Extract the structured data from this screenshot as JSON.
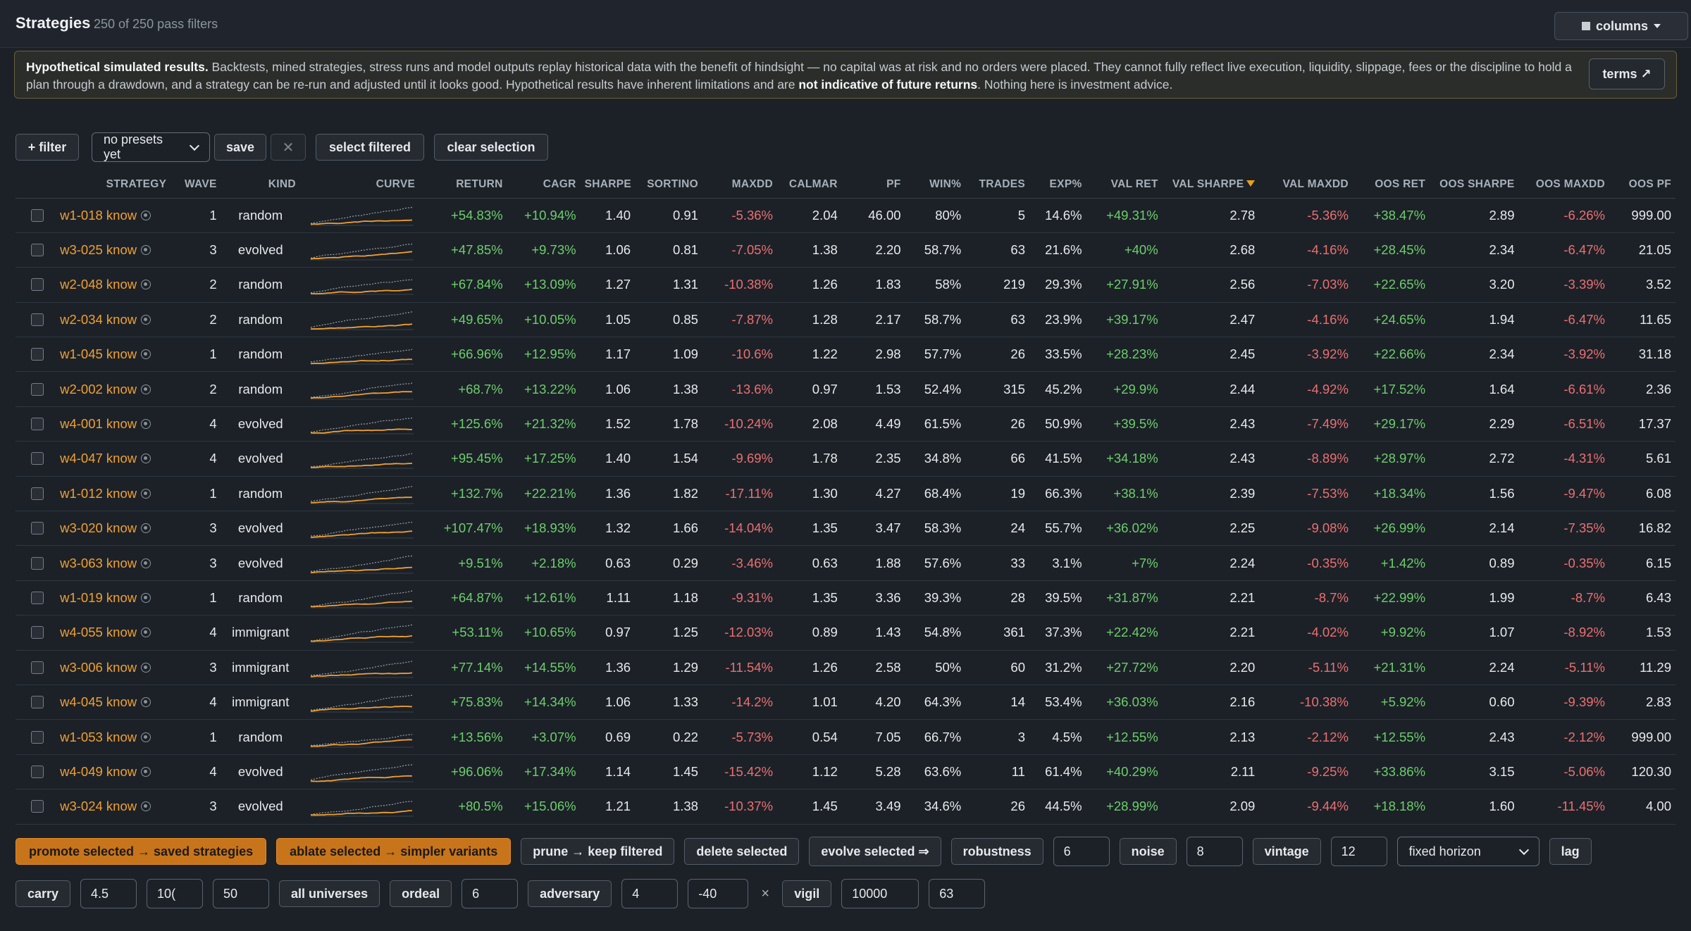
{
  "header": {
    "title": "Strategies",
    "subtitle": "250 of 250 pass filters",
    "columns_label": "columns"
  },
  "disclaimer": {
    "bold1": "Hypothetical simulated results.",
    "text1": " Backtests, mined strategies, stress runs and model outputs replay historical data with the benefit of hindsight — no capital was at risk and no orders were placed. They cannot fully reflect live execution, liquidity, slippage, fees or the discipline to hold a plan through a drawdown, and a strategy can be re-run and adjusted until it looks good. Hypothetical results have inherent limitations and are ",
    "bold2": "not indicative of future returns",
    "text2": ". Nothing here is investment advice.",
    "terms_label": "terms ↗"
  },
  "toolbar": {
    "filter_label": "+ filter",
    "preset_value": "no presets yet",
    "save_label": "save",
    "clear_x": "✕",
    "select_filtered_label": "select filtered",
    "clear_selection_label": "clear selection"
  },
  "table": {
    "headers": [
      "STRATEGY",
      "WAVE",
      "KIND",
      "CURVE",
      "RETURN",
      "CAGR",
      "SHARPE",
      "SORTINO",
      "MAXDD",
      "CALMAR",
      "PF",
      "WIN%",
      "TRADES",
      "EXP%",
      "VAL RET",
      "VAL SHARPE",
      "VAL MAXDD",
      "OOS RET",
      "OOS SHARPE",
      "OOS MAXDD",
      "OOS PF"
    ],
    "sorted_column": "VAL SHARPE",
    "rows": [
      {
        "name": "w1-018 know",
        "wave": "1",
        "kind": "random",
        "ret": "+54.83%",
        "cagr": "+10.94%",
        "sharpe": "1.40",
        "sortino": "0.91",
        "maxdd": "-5.36%",
        "calmar": "2.04",
        "pf": "46.00",
        "win": "80%",
        "trades": "5",
        "exp": "14.6%",
        "valret": "+49.31%",
        "valsharpe": "2.78",
        "valmaxdd": "-5.36%",
        "oosret": "+38.47%",
        "oossharpe": "2.89",
        "oosmaxdd": "-6.26%",
        "oospf": "999.00"
      },
      {
        "name": "w3-025 know",
        "wave": "3",
        "kind": "evolved",
        "ret": "+47.85%",
        "cagr": "+9.73%",
        "sharpe": "1.06",
        "sortino": "0.81",
        "maxdd": "-7.05%",
        "calmar": "1.38",
        "pf": "2.20",
        "win": "58.7%",
        "trades": "63",
        "exp": "21.6%",
        "valret": "+40%",
        "valsharpe": "2.68",
        "valmaxdd": "-4.16%",
        "oosret": "+28.45%",
        "oossharpe": "2.34",
        "oosmaxdd": "-6.47%",
        "oospf": "21.05"
      },
      {
        "name": "w2-048 know",
        "wave": "2",
        "kind": "random",
        "ret": "+67.84%",
        "cagr": "+13.09%",
        "sharpe": "1.27",
        "sortino": "1.31",
        "maxdd": "-10.38%",
        "calmar": "1.26",
        "pf": "1.83",
        "win": "58%",
        "trades": "219",
        "exp": "29.3%",
        "valret": "+27.91%",
        "valsharpe": "2.56",
        "valmaxdd": "-7.03%",
        "oosret": "+22.65%",
        "oossharpe": "3.20",
        "oosmaxdd": "-3.39%",
        "oospf": "3.52"
      },
      {
        "name": "w2-034 know",
        "wave": "2",
        "kind": "random",
        "ret": "+49.65%",
        "cagr": "+10.05%",
        "sharpe": "1.05",
        "sortino": "0.85",
        "maxdd": "-7.87%",
        "calmar": "1.28",
        "pf": "2.17",
        "win": "58.7%",
        "trades": "63",
        "exp": "23.9%",
        "valret": "+39.17%",
        "valsharpe": "2.47",
        "valmaxdd": "-4.16%",
        "oosret": "+24.65%",
        "oossharpe": "1.94",
        "oosmaxdd": "-6.47%",
        "oospf": "11.65"
      },
      {
        "name": "w1-045 know",
        "wave": "1",
        "kind": "random",
        "ret": "+66.96%",
        "cagr": "+12.95%",
        "sharpe": "1.17",
        "sortino": "1.09",
        "maxdd": "-10.6%",
        "calmar": "1.22",
        "pf": "2.98",
        "win": "57.7%",
        "trades": "26",
        "exp": "33.5%",
        "valret": "+28.23%",
        "valsharpe": "2.45",
        "valmaxdd": "-3.92%",
        "oosret": "+22.66%",
        "oossharpe": "2.34",
        "oosmaxdd": "-3.92%",
        "oospf": "31.18"
      },
      {
        "name": "w2-002 know",
        "wave": "2",
        "kind": "random",
        "ret": "+68.7%",
        "cagr": "+13.22%",
        "sharpe": "1.06",
        "sortino": "1.38",
        "maxdd": "-13.6%",
        "calmar": "0.97",
        "pf": "1.53",
        "win": "52.4%",
        "trades": "315",
        "exp": "45.2%",
        "valret": "+29.9%",
        "valsharpe": "2.44",
        "valmaxdd": "-4.92%",
        "oosret": "+17.52%",
        "oossharpe": "1.64",
        "oosmaxdd": "-6.61%",
        "oospf": "2.36"
      },
      {
        "name": "w4-001 know",
        "wave": "4",
        "kind": "evolved",
        "ret": "+125.6%",
        "cagr": "+21.32%",
        "sharpe": "1.52",
        "sortino": "1.78",
        "maxdd": "-10.24%",
        "calmar": "2.08",
        "pf": "4.49",
        "win": "61.5%",
        "trades": "26",
        "exp": "50.9%",
        "valret": "+39.5%",
        "valsharpe": "2.43",
        "valmaxdd": "-7.49%",
        "oosret": "+29.17%",
        "oossharpe": "2.29",
        "oosmaxdd": "-6.51%",
        "oospf": "17.37"
      },
      {
        "name": "w4-047 know",
        "wave": "4",
        "kind": "evolved",
        "ret": "+95.45%",
        "cagr": "+17.25%",
        "sharpe": "1.40",
        "sortino": "1.54",
        "maxdd": "-9.69%",
        "calmar": "1.78",
        "pf": "2.35",
        "win": "34.8%",
        "trades": "66",
        "exp": "41.5%",
        "valret": "+34.18%",
        "valsharpe": "2.43",
        "valmaxdd": "-8.89%",
        "oosret": "+28.97%",
        "oossharpe": "2.72",
        "oosmaxdd": "-4.31%",
        "oospf": "5.61"
      },
      {
        "name": "w1-012 know",
        "wave": "1",
        "kind": "random",
        "ret": "+132.7%",
        "cagr": "+22.21%",
        "sharpe": "1.36",
        "sortino": "1.82",
        "maxdd": "-17.11%",
        "calmar": "1.30",
        "pf": "4.27",
        "win": "68.4%",
        "trades": "19",
        "exp": "66.3%",
        "valret": "+38.1%",
        "valsharpe": "2.39",
        "valmaxdd": "-7.53%",
        "oosret": "+18.34%",
        "oossharpe": "1.56",
        "oosmaxdd": "-9.47%",
        "oospf": "6.08"
      },
      {
        "name": "w3-020 know",
        "wave": "3",
        "kind": "evolved",
        "ret": "+107.47%",
        "cagr": "+18.93%",
        "sharpe": "1.32",
        "sortino": "1.66",
        "maxdd": "-14.04%",
        "calmar": "1.35",
        "pf": "3.47",
        "win": "58.3%",
        "trades": "24",
        "exp": "55.7%",
        "valret": "+36.02%",
        "valsharpe": "2.25",
        "valmaxdd": "-9.08%",
        "oosret": "+26.99%",
        "oossharpe": "2.14",
        "oosmaxdd": "-7.35%",
        "oospf": "16.82"
      },
      {
        "name": "w3-063 know",
        "wave": "3",
        "kind": "evolved",
        "ret": "+9.51%",
        "cagr": "+2.18%",
        "sharpe": "0.63",
        "sortino": "0.29",
        "maxdd": "-3.46%",
        "calmar": "0.63",
        "pf": "1.88",
        "win": "57.6%",
        "trades": "33",
        "exp": "3.1%",
        "valret": "+7%",
        "valsharpe": "2.24",
        "valmaxdd": "-0.35%",
        "oosret": "+1.42%",
        "oossharpe": "0.89",
        "oosmaxdd": "-0.35%",
        "oospf": "6.15"
      },
      {
        "name": "w1-019 know",
        "wave": "1",
        "kind": "random",
        "ret": "+64.87%",
        "cagr": "+12.61%",
        "sharpe": "1.11",
        "sortino": "1.18",
        "maxdd": "-9.31%",
        "calmar": "1.35",
        "pf": "3.36",
        "win": "39.3%",
        "trades": "28",
        "exp": "39.5%",
        "valret": "+31.87%",
        "valsharpe": "2.21",
        "valmaxdd": "-8.7%",
        "oosret": "+22.99%",
        "oossharpe": "1.99",
        "oosmaxdd": "-8.7%",
        "oospf": "6.43"
      },
      {
        "name": "w4-055 know",
        "wave": "4",
        "kind": "immigrant",
        "ret": "+53.11%",
        "cagr": "+10.65%",
        "sharpe": "0.97",
        "sortino": "1.25",
        "maxdd": "-12.03%",
        "calmar": "0.89",
        "pf": "1.43",
        "win": "54.8%",
        "trades": "361",
        "exp": "37.3%",
        "valret": "+22.42%",
        "valsharpe": "2.21",
        "valmaxdd": "-4.02%",
        "oosret": "+9.92%",
        "oossharpe": "1.07",
        "oosmaxdd": "-8.92%",
        "oospf": "1.53"
      },
      {
        "name": "w3-006 know",
        "wave": "3",
        "kind": "immigrant",
        "ret": "+77.14%",
        "cagr": "+14.55%",
        "sharpe": "1.36",
        "sortino": "1.29",
        "maxdd": "-11.54%",
        "calmar": "1.26",
        "pf": "2.58",
        "win": "50%",
        "trades": "60",
        "exp": "31.2%",
        "valret": "+27.72%",
        "valsharpe": "2.20",
        "valmaxdd": "-5.11%",
        "oosret": "+21.31%",
        "oossharpe": "2.24",
        "oosmaxdd": "-5.11%",
        "oospf": "11.29"
      },
      {
        "name": "w4-045 know",
        "wave": "4",
        "kind": "immigrant",
        "ret": "+75.83%",
        "cagr": "+14.34%",
        "sharpe": "1.06",
        "sortino": "1.33",
        "maxdd": "-14.2%",
        "calmar": "1.01",
        "pf": "4.20",
        "win": "64.3%",
        "trades": "14",
        "exp": "53.4%",
        "valret": "+36.03%",
        "valsharpe": "2.16",
        "valmaxdd": "-10.38%",
        "oosret": "+5.92%",
        "oossharpe": "0.60",
        "oosmaxdd": "-9.39%",
        "oospf": "2.83"
      },
      {
        "name": "w1-053 know",
        "wave": "1",
        "kind": "random",
        "ret": "+13.56%",
        "cagr": "+3.07%",
        "sharpe": "0.69",
        "sortino": "0.22",
        "maxdd": "-5.73%",
        "calmar": "0.54",
        "pf": "7.05",
        "win": "66.7%",
        "trades": "3",
        "exp": "4.5%",
        "valret": "+12.55%",
        "valsharpe": "2.13",
        "valmaxdd": "-2.12%",
        "oosret": "+12.55%",
        "oossharpe": "2.43",
        "oosmaxdd": "-2.12%",
        "oospf": "999.00"
      },
      {
        "name": "w4-049 know",
        "wave": "4",
        "kind": "evolved",
        "ret": "+96.06%",
        "cagr": "+17.34%",
        "sharpe": "1.14",
        "sortino": "1.45",
        "maxdd": "-15.42%",
        "calmar": "1.12",
        "pf": "5.28",
        "win": "63.6%",
        "trades": "11",
        "exp": "61.4%",
        "valret": "+40.29%",
        "valsharpe": "2.11",
        "valmaxdd": "-9.25%",
        "oosret": "+33.86%",
        "oossharpe": "3.15",
        "oosmaxdd": "-5.06%",
        "oospf": "120.30"
      },
      {
        "name": "w3-024 know",
        "wave": "3",
        "kind": "evolved",
        "ret": "+80.5%",
        "cagr": "+15.06%",
        "sharpe": "1.21",
        "sortino": "1.38",
        "maxdd": "-10.37%",
        "calmar": "1.45",
        "pf": "3.49",
        "win": "34.6%",
        "trades": "26",
        "exp": "44.5%",
        "valret": "+28.99%",
        "valsharpe": "2.09",
        "valmaxdd": "-9.44%",
        "oosret": "+18.18%",
        "oossharpe": "1.60",
        "oosmaxdd": "-11.45%",
        "oospf": "4.00"
      }
    ]
  },
  "actions": {
    "promote_label": "promote selected → saved strategies",
    "ablate_label": "ablate selected → simpler variants",
    "prune_label": "prune → keep filtered",
    "delete_label": "delete selected",
    "evolve_label": "evolve selected ⇒",
    "robustness_label": "robustness",
    "robustness_value": "6",
    "noise_label": "noise",
    "noise_value": "8",
    "vintage_label": "vintage",
    "vintage_value": "12",
    "horizon_value": "fixed horizon",
    "lag_label": "lag",
    "carry_label": "carry",
    "carry_v1": "4.5",
    "carry_v2": "10(",
    "carry_v3": "50",
    "all_universes_label": "all universes",
    "ordeal_label": "ordeal",
    "ordeal_value": "6",
    "adversary_label": "adversary",
    "adversary_v1": "4",
    "adversary_v2": "-40",
    "times": "×",
    "vigil_label": "vigil",
    "vigil_v1": "10000",
    "vigil_v2": "63"
  },
  "colors": {
    "accent": "#f0a030",
    "positive": "#6ccf6a",
    "negative": "#ec6f6f",
    "background": "#1c2128"
  }
}
